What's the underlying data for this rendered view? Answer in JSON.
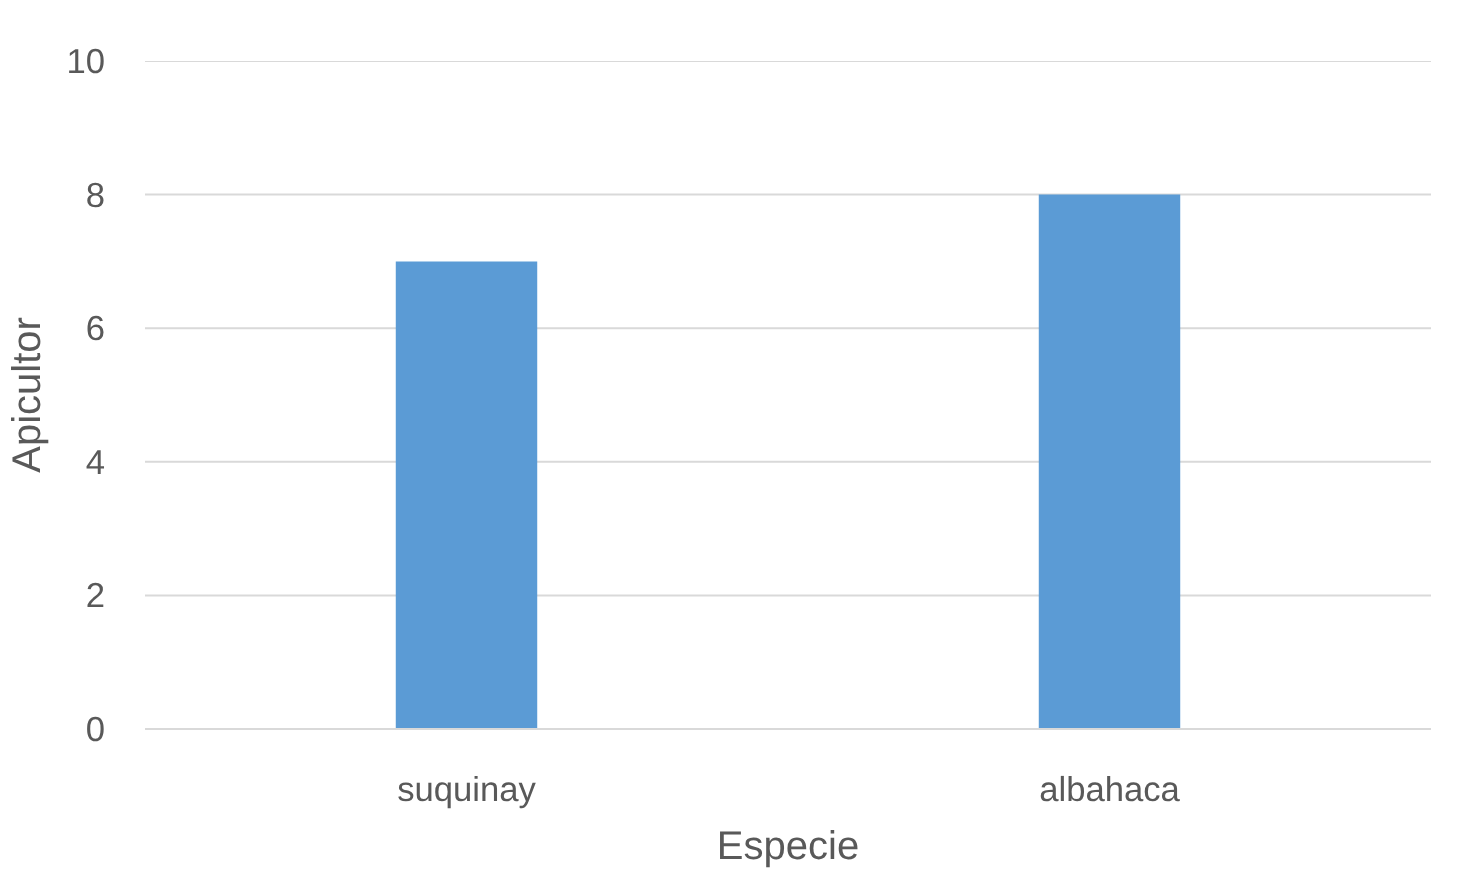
{
  "chart_data": {
    "type": "bar",
    "xlabel": "Especie",
    "ylabel": "Apicultor",
    "categories": [
      "suquinay",
      "albahaca"
    ],
    "values": [
      7,
      8
    ],
    "color": "#5b9bd5",
    "ylim": [
      0,
      10
    ],
    "yticks": [
      0,
      2,
      4,
      6,
      8,
      10
    ],
    "grid": "y"
  }
}
